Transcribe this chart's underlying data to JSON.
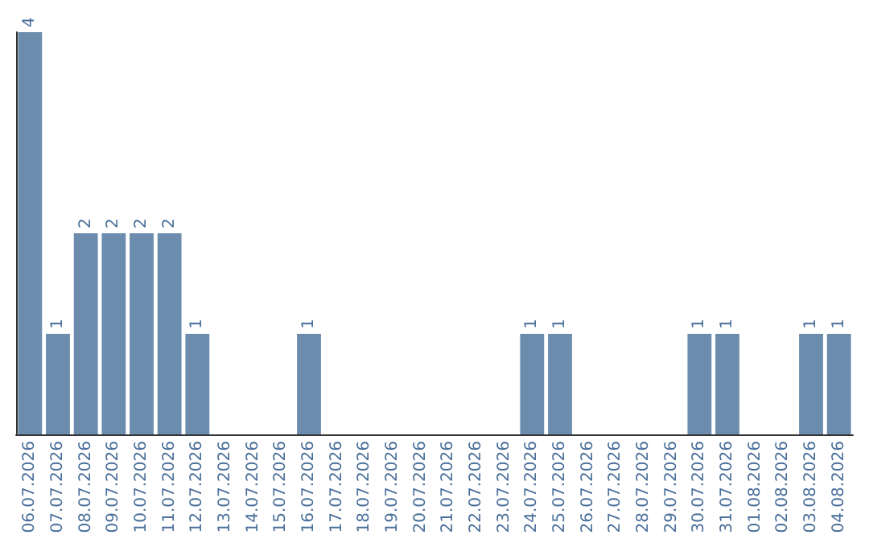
{
  "chart_data": {
    "type": "bar",
    "categories": [
      "06.07.2026",
      "07.07.2026",
      "08.07.2026",
      "09.07.2026",
      "10.07.2026",
      "11.07.2026",
      "12.07.2026",
      "13.07.2026",
      "14.07.2026",
      "15.07.2026",
      "16.07.2026",
      "17.07.2026",
      "18.07.2026",
      "19.07.2026",
      "20.07.2026",
      "21.07.2026",
      "22.07.2026",
      "23.07.2026",
      "24.07.2026",
      "25.07.2026",
      "26.07.2026",
      "27.07.2026",
      "28.07.2026",
      "29.07.2026",
      "30.07.2026",
      "31.07.2026",
      "01.08.2026",
      "02.08.2026",
      "03.08.2026",
      "04.08.2026"
    ],
    "values": [
      4,
      1,
      2,
      2,
      2,
      2,
      1,
      0,
      0,
      0,
      1,
      0,
      0,
      0,
      0,
      0,
      0,
      0,
      1,
      1,
      0,
      0,
      0,
      0,
      1,
      1,
      0,
      0,
      1,
      1
    ],
    "value_labels": [
      "4",
      "1",
      "2",
      "2",
      "2",
      "2",
      "1",
      null,
      null,
      null,
      "1",
      null,
      null,
      null,
      null,
      null,
      null,
      null,
      "1",
      "1",
      null,
      null,
      null,
      null,
      "1",
      "1",
      null,
      null,
      "1",
      "1"
    ],
    "color": "#6b8cad",
    "ylim": [
      0,
      4
    ],
    "tick_labels": "x",
    "grid": false
  }
}
